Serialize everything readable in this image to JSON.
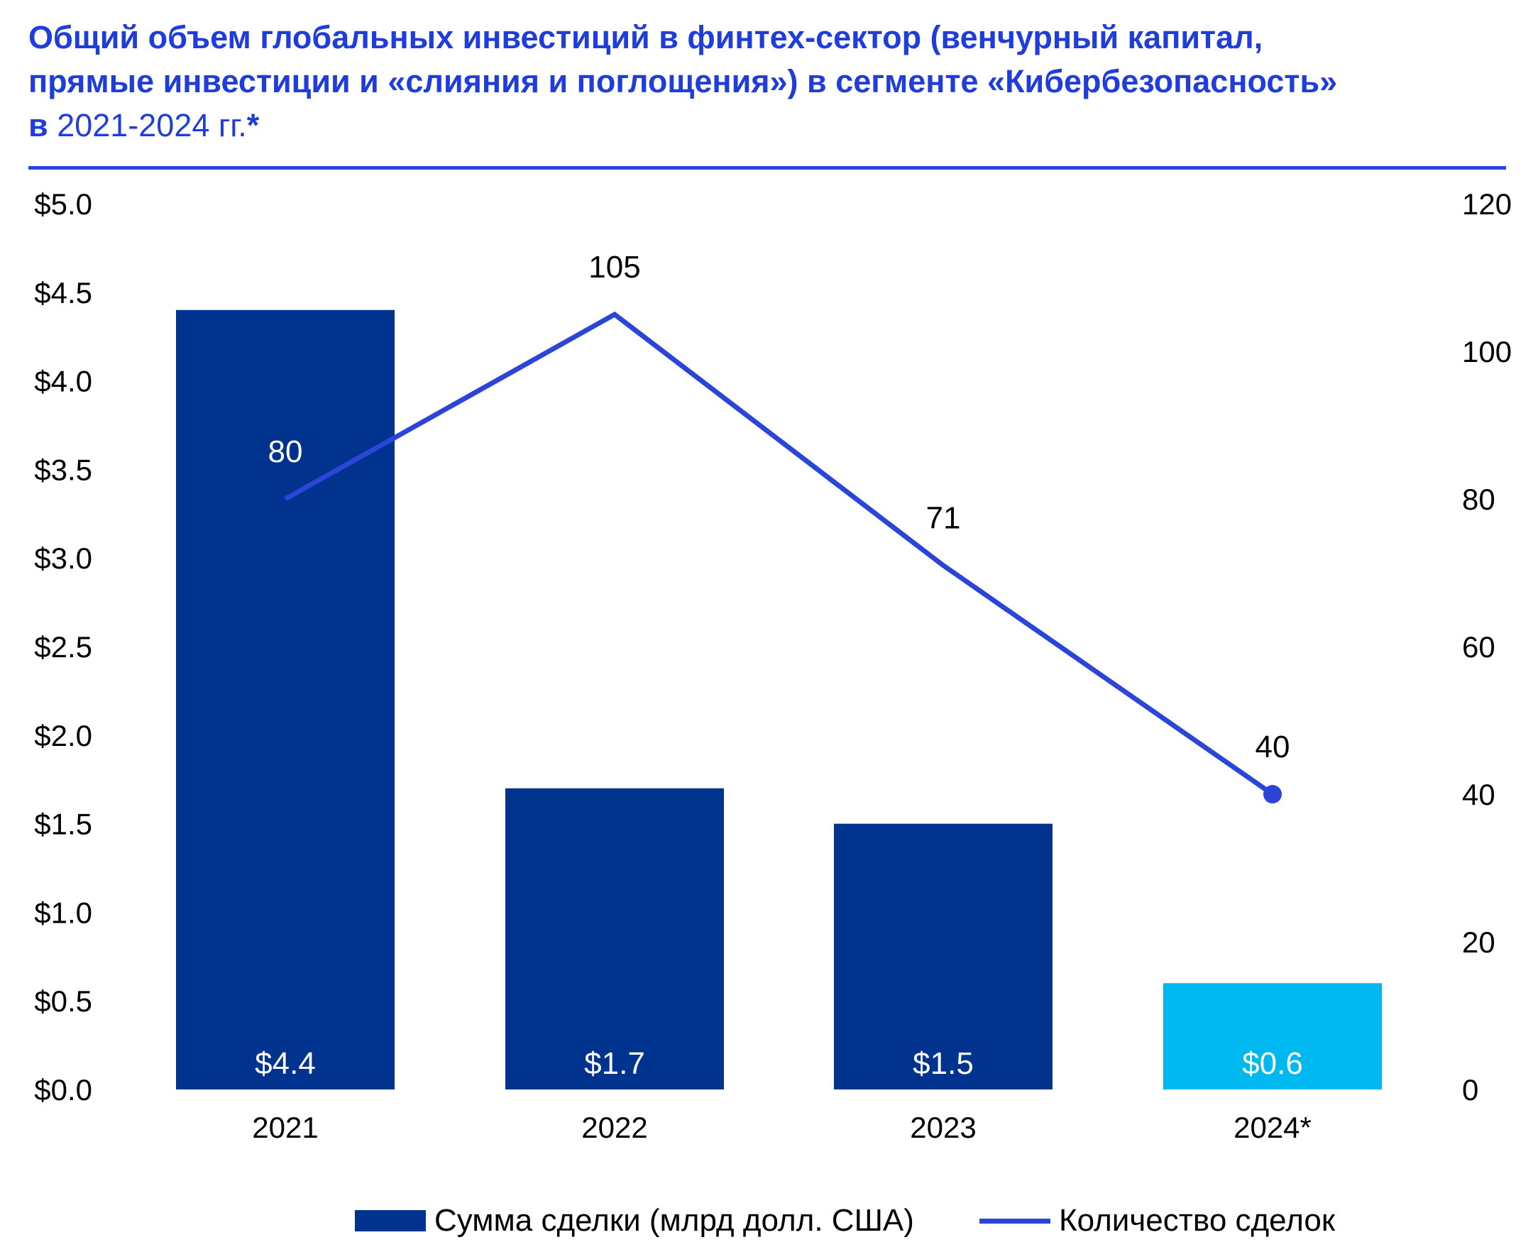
{
  "title": {
    "line1": "Общий объем глобальных инвестиций в финтех-сектор (венчурный капитал,",
    "line2": "прямые инвестиции и «слияния и поглощения») в сегменте «Кибербезопасность»",
    "line3_bold_a": "в",
    "line3_light": "2021-2024 гг.",
    "line3_bold_b": "*"
  },
  "colors": {
    "title": "#1f3ddb",
    "bar": "#00338d",
    "bar_highlight": "#00b8f0",
    "line": "#2a45d8"
  },
  "chart_data": {
    "type": "bar",
    "categories": [
      "2021",
      "2022",
      "2023",
      "2024*"
    ],
    "series": [
      {
        "name": "Сумма сделки (млрд долл. США)",
        "type": "bar",
        "axis": "left",
        "values": [
          4.4,
          1.7,
          1.5,
          0.6
        ],
        "data_labels": [
          "$4.4",
          "$1.7",
          "$1.5",
          "$0.6"
        ],
        "highlight_index": 3
      },
      {
        "name": "Количество сделок",
        "type": "line",
        "axis": "right",
        "values": [
          80,
          105,
          71,
          40
        ],
        "data_labels": [
          "80",
          "105",
          "71",
          "40"
        ],
        "end_marker": true
      }
    ],
    "y_left": {
      "range": [
        0,
        5
      ],
      "ticks": [
        "$0.0",
        "$0.5",
        "$1.0",
        "$1.5",
        "$2.0",
        "$2.5",
        "$3.0",
        "$3.5",
        "$4.0",
        "$4.5",
        "$5.0"
      ]
    },
    "y_right": {
      "range": [
        0,
        120
      ],
      "ticks": [
        "0",
        "20",
        "40",
        "60",
        "80",
        "100",
        "120"
      ]
    },
    "grid": false,
    "legend_position": "bottom"
  }
}
